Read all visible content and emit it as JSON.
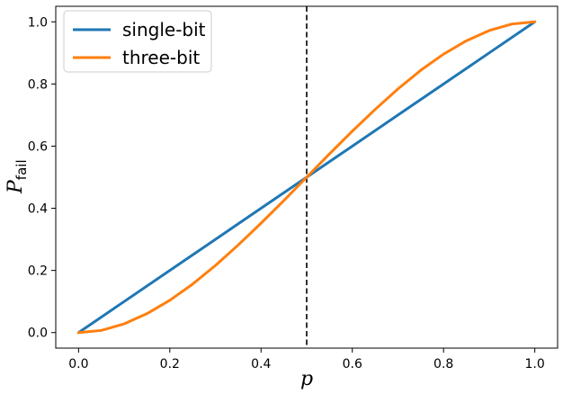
{
  "chart_data": {
    "type": "line",
    "title": "",
    "xlabel": "p",
    "ylabel": {
      "main": "P",
      "subscript": "fail"
    },
    "xlim": [
      -0.05,
      1.05
    ],
    "ylim": [
      -0.05,
      1.05
    ],
    "xticks": [
      0.0,
      0.2,
      0.4,
      0.6,
      0.8,
      1.0
    ],
    "yticks": [
      0.0,
      0.2,
      0.4,
      0.6,
      0.8,
      1.0
    ],
    "xtick_labels": [
      "0.0",
      "0.2",
      "0.4",
      "0.6",
      "0.8",
      "1.0"
    ],
    "ytick_labels": [
      "0.0",
      "0.2",
      "0.4",
      "0.6",
      "0.8",
      "1.0"
    ],
    "grid": false,
    "legend": {
      "placement": "top-left"
    },
    "reference_lines": [
      {
        "orientation": "vertical",
        "x": 0.5,
        "style": "dashed",
        "color": "#000000"
      }
    ],
    "series": [
      {
        "name": "single-bit",
        "color": "#1f77b4",
        "x": [
          0.0,
          0.1,
          0.2,
          0.3,
          0.4,
          0.5,
          0.6,
          0.7,
          0.8,
          0.9,
          1.0
        ],
        "y": [
          0.0,
          0.1,
          0.2,
          0.3,
          0.4,
          0.5,
          0.6,
          0.7,
          0.8,
          0.9,
          1.0
        ]
      },
      {
        "name": "three-bit",
        "color": "#ff7f0e",
        "x": [
          0.0,
          0.05,
          0.1,
          0.15,
          0.2,
          0.25,
          0.3,
          0.35,
          0.4,
          0.45,
          0.5,
          0.55,
          0.6,
          0.65,
          0.7,
          0.75,
          0.8,
          0.85,
          0.9,
          0.95,
          1.0
        ],
        "y": [
          0.0,
          0.007,
          0.028,
          0.061,
          0.104,
          0.156,
          0.216,
          0.282,
          0.352,
          0.425,
          0.5,
          0.575,
          0.648,
          0.718,
          0.784,
          0.844,
          0.896,
          0.939,
          0.972,
          0.993,
          1.0
        ]
      }
    ]
  }
}
